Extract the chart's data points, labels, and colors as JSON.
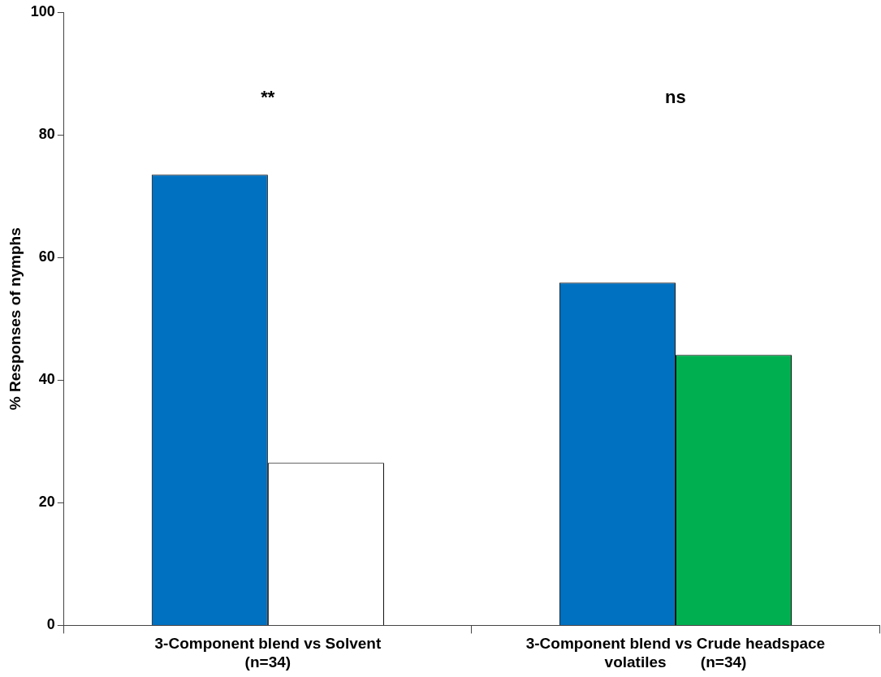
{
  "chart_data": {
    "type": "bar",
    "ylabel": "% Responses of nymphs",
    "categories": [
      "3-Component blend vs Solvent\n(n=34)",
      "3-Component blend vs Crude headspace\nvolatiles        (n=34)"
    ],
    "series": [
      {
        "color": "#0070c0",
        "values": [
          73.5,
          55.9
        ]
      },
      {
        "colors": [
          "#ffffff",
          "#00b050"
        ],
        "values": [
          26.5,
          44.1
        ]
      }
    ],
    "ylim": [
      0,
      100
    ],
    "yticks": [
      0,
      20,
      40,
      60,
      80,
      100
    ],
    "grid": false,
    "legend": false,
    "annotations": [
      "**",
      "ns"
    ]
  }
}
